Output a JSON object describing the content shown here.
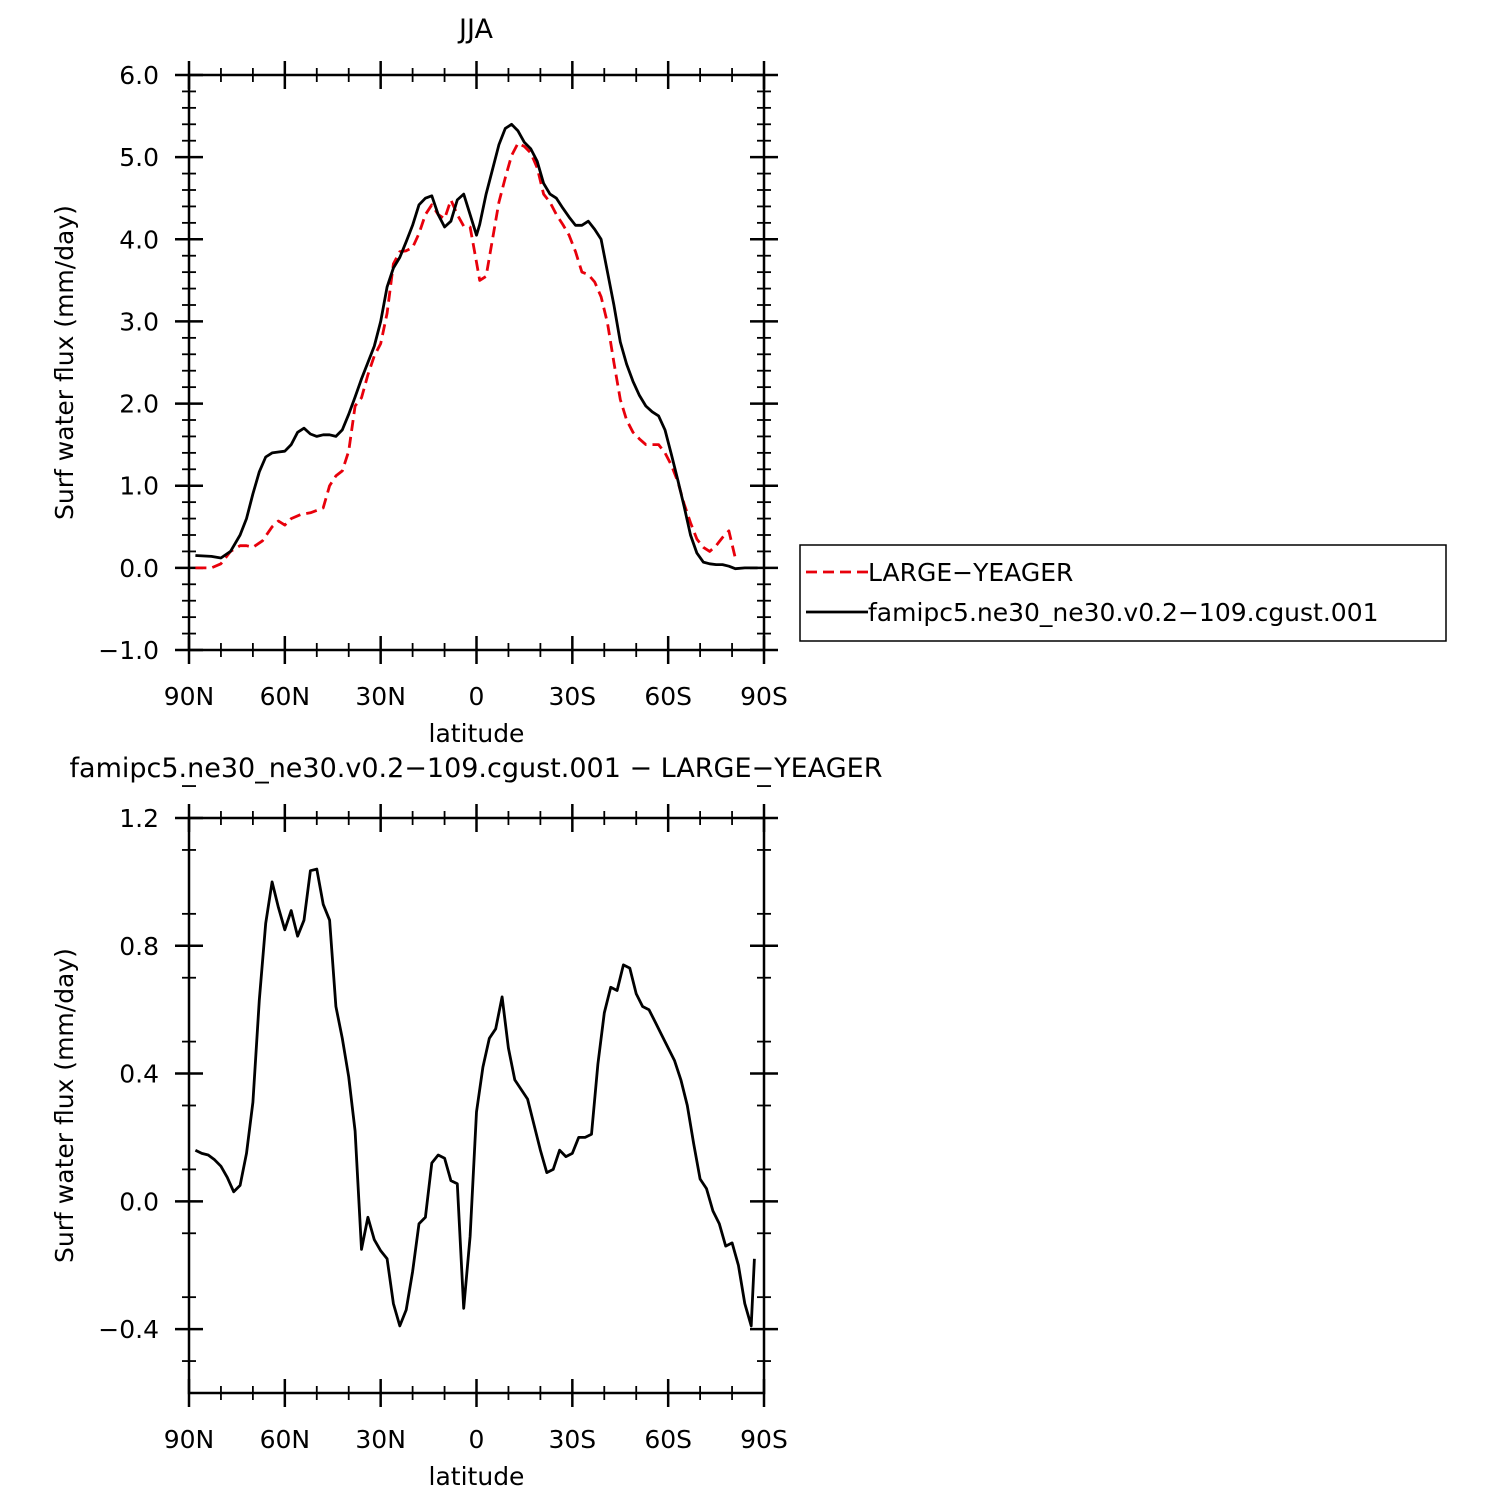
{
  "chart_data": [
    {
      "type": "line",
      "title": "JJA",
      "xlabel": "latitude",
      "ylabel": "Surf water flux (mm/day)",
      "xlim": [
        90,
        -90
      ],
      "ylim": [
        -1.0,
        6.0
      ],
      "x_ticks": [
        90,
        60,
        30,
        0,
        -30,
        -60,
        -90
      ],
      "x_tick_labels": [
        "90N",
        "60N",
        "30N",
        "0",
        "30S",
        "60S",
        "90S"
      ],
      "y_ticks": [
        -1.0,
        0.0,
        1.0,
        2.0,
        3.0,
        4.0,
        5.0,
        6.0
      ],
      "y_tick_labels": [
        "−1.0",
        "0.0",
        "1.0",
        "2.0",
        "3.0",
        "4.0",
        "5.0",
        "6.0"
      ],
      "legend_position": "right",
      "series": [
        {
          "name": "LARGE−YEAGER",
          "color": "#e8000b",
          "dash": "dashed",
          "points": [
            [
              88,
              0.0
            ],
            [
              83,
              0.0
            ],
            [
              80,
              0.05
            ],
            [
              77,
              0.2
            ],
            [
              74,
              0.27
            ],
            [
              72,
              0.27
            ],
            [
              70,
              0.25
            ],
            [
              67,
              0.33
            ],
            [
              64,
              0.5
            ],
            [
              62,
              0.57
            ],
            [
              60,
              0.52
            ],
            [
              58,
              0.6
            ],
            [
              55,
              0.65
            ],
            [
              52,
              0.67
            ],
            [
              50,
              0.7
            ],
            [
              48,
              0.73
            ],
            [
              46,
              1.0
            ],
            [
              44,
              1.12
            ],
            [
              42,
              1.18
            ],
            [
              40,
              1.42
            ],
            [
              38,
              1.97
            ],
            [
              36,
              2.07
            ],
            [
              34,
              2.35
            ],
            [
              32,
              2.58
            ],
            [
              30,
              2.73
            ],
            [
              28,
              3.1
            ],
            [
              26,
              3.7
            ],
            [
              24,
              3.85
            ],
            [
              22,
              3.86
            ],
            [
              20,
              3.9
            ],
            [
              18,
              4.07
            ],
            [
              16,
              4.3
            ],
            [
              14,
              4.42
            ],
            [
              12,
              4.3
            ],
            [
              10,
              4.25
            ],
            [
              8,
              4.48
            ],
            [
              6,
              4.3
            ],
            [
              4,
              4.16
            ],
            [
              2,
              4.15
            ],
            [
              0,
              3.72
            ],
            [
              -1,
              3.5
            ],
            [
              -3,
              3.55
            ],
            [
              -5,
              4.0
            ],
            [
              -7,
              4.45
            ],
            [
              -9,
              4.75
            ],
            [
              -11,
              5.02
            ],
            [
              -13,
              5.17
            ],
            [
              -15,
              5.13
            ],
            [
              -17,
              5.05
            ],
            [
              -19,
              4.87
            ],
            [
              -21,
              4.55
            ],
            [
              -23,
              4.45
            ],
            [
              -25,
              4.3
            ],
            [
              -27,
              4.18
            ],
            [
              -29,
              4.05
            ],
            [
              -31,
              3.85
            ],
            [
              -33,
              3.6
            ],
            [
              -35,
              3.57
            ],
            [
              -37,
              3.48
            ],
            [
              -39,
              3.3
            ],
            [
              -41,
              2.98
            ],
            [
              -43,
              2.5
            ],
            [
              -45,
              2.05
            ],
            [
              -47,
              1.8
            ],
            [
              -49,
              1.65
            ],
            [
              -51,
              1.57
            ],
            [
              -53,
              1.5
            ],
            [
              -55,
              1.5
            ],
            [
              -57,
              1.5
            ],
            [
              -59,
              1.4
            ],
            [
              -61,
              1.25
            ],
            [
              -63,
              1.05
            ],
            [
              -65,
              0.78
            ],
            [
              -67,
              0.55
            ],
            [
              -69,
              0.35
            ],
            [
              -71,
              0.25
            ],
            [
              -73,
              0.2
            ],
            [
              -75,
              0.27
            ],
            [
              -77,
              0.37
            ],
            [
              -79,
              0.45
            ],
            [
              -81,
              0.12
            ]
          ]
        },
        {
          "name": "famipc5.ne30_ne30.v0.2−109.cgust.001",
          "color": "#000000",
          "dash": "solid",
          "points": [
            [
              88,
              0.15
            ],
            [
              83,
              0.14
            ],
            [
              80,
              0.12
            ],
            [
              77,
              0.2
            ],
            [
              74,
              0.4
            ],
            [
              72,
              0.6
            ],
            [
              70,
              0.9
            ],
            [
              68,
              1.17
            ],
            [
              66,
              1.35
            ],
            [
              64,
              1.4
            ],
            [
              62,
              1.41
            ],
            [
              60,
              1.42
            ],
            [
              58,
              1.5
            ],
            [
              56,
              1.65
            ],
            [
              54,
              1.7
            ],
            [
              52,
              1.63
            ],
            [
              50,
              1.6
            ],
            [
              48,
              1.62
            ],
            [
              46,
              1.62
            ],
            [
              44,
              1.6
            ],
            [
              42,
              1.68
            ],
            [
              40,
              1.87
            ],
            [
              38,
              2.08
            ],
            [
              36,
              2.3
            ],
            [
              34,
              2.5
            ],
            [
              32,
              2.7
            ],
            [
              30,
              3.0
            ],
            [
              28,
              3.42
            ],
            [
              26,
              3.65
            ],
            [
              24,
              3.78
            ],
            [
              22,
              3.97
            ],
            [
              20,
              4.17
            ],
            [
              18,
              4.42
            ],
            [
              16,
              4.5
            ],
            [
              14,
              4.53
            ],
            [
              12,
              4.3
            ],
            [
              10,
              4.15
            ],
            [
              8,
              4.22
            ],
            [
              6,
              4.48
            ],
            [
              4,
              4.55
            ],
            [
              2,
              4.3
            ],
            [
              0,
              4.05
            ],
            [
              -1,
              4.18
            ],
            [
              -3,
              4.55
            ],
            [
              -5,
              4.85
            ],
            [
              -7,
              5.15
            ],
            [
              -9,
              5.35
            ],
            [
              -11,
              5.4
            ],
            [
              -13,
              5.32
            ],
            [
              -15,
              5.18
            ],
            [
              -17,
              5.1
            ],
            [
              -19,
              4.95
            ],
            [
              -21,
              4.68
            ],
            [
              -23,
              4.55
            ],
            [
              -25,
              4.5
            ],
            [
              -27,
              4.38
            ],
            [
              -29,
              4.27
            ],
            [
              -31,
              4.17
            ],
            [
              -33,
              4.17
            ],
            [
              -35,
              4.22
            ],
            [
              -37,
              4.12
            ],
            [
              -39,
              4.0
            ],
            [
              -41,
              3.6
            ],
            [
              -43,
              3.2
            ],
            [
              -45,
              2.75
            ],
            [
              -47,
              2.48
            ],
            [
              -49,
              2.27
            ],
            [
              -51,
              2.1
            ],
            [
              -53,
              1.97
            ],
            [
              -55,
              1.9
            ],
            [
              -57,
              1.85
            ],
            [
              -59,
              1.68
            ],
            [
              -61,
              1.38
            ],
            [
              -63,
              1.07
            ],
            [
              -65,
              0.75
            ],
            [
              -67,
              0.4
            ],
            [
              -69,
              0.18
            ],
            [
              -71,
              0.07
            ],
            [
              -73,
              0.05
            ],
            [
              -75,
              0.04
            ],
            [
              -77,
              0.04
            ],
            [
              -79,
              0.02
            ],
            [
              -81,
              -0.01
            ],
            [
              -84,
              0.0
            ],
            [
              -88,
              0.0
            ]
          ]
        }
      ]
    },
    {
      "type": "line",
      "title": "famipc5.ne30_ne30.v0.2−109.cgust.001  −  LARGE−YEAGER",
      "xlabel": "latitude",
      "ylabel": "Surf water flux (mm/day)",
      "xlim": [
        90,
        -90
      ],
      "ylim": [
        -0.6,
        1.2
      ],
      "x_ticks": [
        90,
        60,
        30,
        0,
        -30,
        -60,
        -90
      ],
      "x_tick_labels": [
        "90N",
        "60N",
        "30N",
        "0",
        "30S",
        "60S",
        "90S"
      ],
      "y_ticks": [
        -0.4,
        0.0,
        0.4,
        0.8,
        1.2
      ],
      "y_tick_labels": [
        "−0.4",
        "0.0",
        "0.4",
        "0.8",
        "1.2"
      ],
      "series": [
        {
          "color": "#000000",
          "dash": "solid",
          "points": [
            [
              88,
              0.16
            ],
            [
              86,
              0.15
            ],
            [
              84,
              0.145
            ],
            [
              82,
              0.13
            ],
            [
              80,
              0.11
            ],
            [
              78,
              0.075
            ],
            [
              76,
              0.03
            ],
            [
              74,
              0.05
            ],
            [
              72,
              0.15
            ],
            [
              70,
              0.31
            ],
            [
              68,
              0.63
            ],
            [
              66,
              0.87
            ],
            [
              64,
              1.0
            ],
            [
              62,
              0.92
            ],
            [
              60,
              0.85
            ],
            [
              58,
              0.91
            ],
            [
              56,
              0.83
            ],
            [
              54,
              0.88
            ],
            [
              52,
              1.035
            ],
            [
              50,
              1.04
            ],
            [
              48,
              0.93
            ],
            [
              46,
              0.88
            ],
            [
              44,
              0.61
            ],
            [
              42,
              0.51
            ],
            [
              40,
              0.39
            ],
            [
              38,
              0.22
            ],
            [
              36,
              -0.15
            ],
            [
              34,
              -0.05
            ],
            [
              32,
              -0.12
            ],
            [
              30,
              -0.155
            ],
            [
              28,
              -0.18
            ],
            [
              26,
              -0.32
            ],
            [
              24,
              -0.39
            ],
            [
              22,
              -0.34
            ],
            [
              20,
              -0.22
            ],
            [
              18,
              -0.07
            ],
            [
              16,
              -0.05
            ],
            [
              14,
              0.12
            ],
            [
              12,
              0.145
            ],
            [
              10,
              0.135
            ],
            [
              8,
              0.065
            ],
            [
              6,
              0.055
            ],
            [
              4,
              -0.335
            ],
            [
              2,
              -0.11
            ],
            [
              0,
              0.28
            ],
            [
              -2,
              0.42
            ],
            [
              -4,
              0.51
            ],
            [
              -6,
              0.54
            ],
            [
              -8,
              0.64
            ],
            [
              -10,
              0.48
            ],
            [
              -12,
              0.38
            ],
            [
              -14,
              0.35
            ],
            [
              -16,
              0.32
            ],
            [
              -18,
              0.24
            ],
            [
              -20,
              0.16
            ],
            [
              -22,
              0.09
            ],
            [
              -24,
              0.1
            ],
            [
              -26,
              0.16
            ],
            [
              -28,
              0.14
            ],
            [
              -30,
              0.15
            ],
            [
              -32,
              0.2
            ],
            [
              -34,
              0.2
            ],
            [
              -36,
              0.21
            ],
            [
              -38,
              0.43
            ],
            [
              -40,
              0.59
            ],
            [
              -42,
              0.67
            ],
            [
              -44,
              0.66
            ],
            [
              -46,
              0.74
            ],
            [
              -48,
              0.73
            ],
            [
              -50,
              0.65
            ],
            [
              -52,
              0.61
            ],
            [
              -54,
              0.6
            ],
            [
              -56,
              0.56
            ],
            [
              -58,
              0.52
            ],
            [
              -60,
              0.48
            ],
            [
              -62,
              0.44
            ],
            [
              -64,
              0.38
            ],
            [
              -66,
              0.3
            ],
            [
              -68,
              0.18
            ],
            [
              -70,
              0.07
            ],
            [
              -72,
              0.04
            ],
            [
              -74,
              -0.03
            ],
            [
              -76,
              -0.07
            ],
            [
              -78,
              -0.14
            ],
            [
              -80,
              -0.13
            ],
            [
              -82,
              -0.2
            ],
            [
              -84,
              -0.32
            ],
            [
              -86,
              -0.39
            ],
            [
              -87,
              -0.18
            ]
          ]
        }
      ]
    }
  ]
}
